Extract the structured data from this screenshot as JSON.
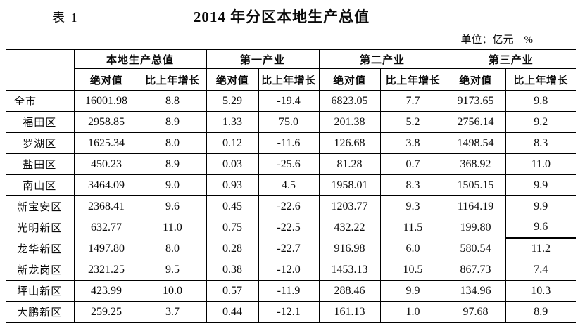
{
  "header": {
    "table_label": "表 1",
    "title": "2014 年分区本地生产总值",
    "unit_note": "单位：亿元　%"
  },
  "table": {
    "column_groups": [
      {
        "label": "本地生产总值"
      },
      {
        "label": "第一产业"
      },
      {
        "label": "第二产业"
      },
      {
        "label": "第三产业"
      }
    ],
    "sub_header_row": [
      "绝对值",
      "比上年增长",
      "绝对值",
      "比上年增长",
      "绝对值",
      "比上年增长",
      "绝对值",
      "比上年增长"
    ],
    "rows": [
      {
        "name": "全市",
        "values": [
          "16001.98",
          "8.8",
          "5.29",
          "-19.4",
          "6823.05",
          "7.7",
          "9173.65",
          "9.8"
        ]
      },
      {
        "name": "福田区",
        "values": [
          "2958.85",
          "8.9",
          "1.33",
          "75.0",
          "201.38",
          "5.2",
          "2756.14",
          "9.2"
        ]
      },
      {
        "name": "罗湖区",
        "values": [
          "1625.34",
          "8.0",
          "0.12",
          "-11.6",
          "126.68",
          "3.8",
          "1498.54",
          "8.3"
        ]
      },
      {
        "name": "盐田区",
        "values": [
          "450.23",
          "8.9",
          "0.03",
          "-25.6",
          "81.28",
          "0.7",
          "368.92",
          "11.0"
        ]
      },
      {
        "name": "南山区",
        "values": [
          "3464.09",
          "9.0",
          "0.93",
          "4.5",
          "1958.01",
          "8.3",
          "1505.15",
          "9.9"
        ]
      },
      {
        "name": "新宝安区",
        "values": [
          "2368.41",
          "9.6",
          "0.45",
          "-22.6",
          "1203.77",
          "9.3",
          "1164.19",
          "9.9"
        ]
      },
      {
        "name": "光明新区",
        "values": [
          "632.77",
          "11.0",
          "0.75",
          "-22.5",
          "432.22",
          "11.5",
          "199.80",
          "9.6"
        ]
      },
      {
        "name": "龙华新区",
        "values": [
          "1497.80",
          "8.0",
          "0.28",
          "-22.7",
          "916.98",
          "6.0",
          "580.54",
          "11.2"
        ]
      },
      {
        "name": "新龙岗区",
        "values": [
          "2321.25",
          "9.5",
          "0.38",
          "-12.0",
          "1453.13",
          "10.5",
          "867.73",
          "7.4"
        ]
      },
      {
        "name": "坪山新区",
        "values": [
          "423.99",
          "10.0",
          "0.57",
          "-11.9",
          "288.46",
          "9.9",
          "134.96",
          "10.3"
        ]
      },
      {
        "name": "大鹏新区",
        "values": [
          "259.25",
          "3.7",
          "0.44",
          "-12.1",
          "161.13",
          "1.0",
          "97.68",
          "8.9"
        ]
      }
    ]
  }
}
